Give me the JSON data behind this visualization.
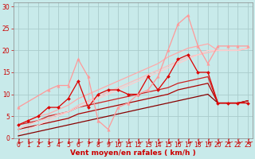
{
  "bg_color": "#c8eaea",
  "grid_color": "#aacccc",
  "xlabel": "Vent moyen/en rafales ( km/h )",
  "xlim": [
    -0.5,
    23.5
  ],
  "ylim": [
    0,
    31
  ],
  "yticks": [
    0,
    5,
    10,
    15,
    20,
    25,
    30
  ],
  "xticks": [
    0,
    1,
    2,
    3,
    4,
    5,
    6,
    7,
    8,
    9,
    10,
    11,
    12,
    13,
    14,
    15,
    16,
    17,
    18,
    19,
    20,
    21,
    22,
    23
  ],
  "lines": [
    {
      "x": [
        0,
        1,
        2,
        3,
        4,
        5,
        6,
        7,
        8,
        9,
        10,
        11,
        12,
        13,
        14,
        15,
        16,
        17,
        18,
        19,
        20,
        21,
        22,
        23
      ],
      "y": [
        3,
        4,
        5,
        7,
        7,
        9,
        13,
        7,
        10,
        11,
        11,
        10,
        10,
        14,
        11,
        14,
        18,
        19,
        15,
        15,
        8,
        8,
        8,
        8
      ],
      "color": "#dd0000",
      "lw": 0.9,
      "marker": "D",
      "ms": 2.0
    },
    {
      "x": [
        0,
        1,
        2,
        3,
        4,
        5,
        6,
        7,
        8,
        9,
        10,
        11,
        12,
        13,
        14,
        15,
        16,
        17,
        18,
        19,
        20,
        21,
        22,
        23
      ],
      "y": [
        0.5,
        1.0,
        1.5,
        2.0,
        2.5,
        3.0,
        3.5,
        4.0,
        4.5,
        5.0,
        5.5,
        6.0,
        6.5,
        7.0,
        7.5,
        8.0,
        8.5,
        9.0,
        9.5,
        10.0,
        8.0,
        8.0,
        8.0,
        8.5
      ],
      "color": "#880000",
      "lw": 0.9,
      "marker": null,
      "ms": 0
    },
    {
      "x": [
        0,
        1,
        2,
        3,
        4,
        5,
        6,
        7,
        8,
        9,
        10,
        11,
        12,
        13,
        14,
        15,
        16,
        17,
        18,
        19,
        20,
        21,
        22,
        23
      ],
      "y": [
        2,
        2.5,
        3.0,
        3.5,
        4.0,
        4.5,
        5.5,
        6.0,
        6.5,
        7.0,
        7.5,
        8.0,
        8.5,
        9.0,
        9.5,
        10.0,
        11.0,
        11.5,
        12.0,
        12.5,
        8.0,
        8.0,
        8.0,
        8.5
      ],
      "color": "#aa0000",
      "lw": 0.9,
      "marker": null,
      "ms": 0
    },
    {
      "x": [
        0,
        1,
        2,
        3,
        4,
        5,
        6,
        7,
        8,
        9,
        10,
        11,
        12,
        13,
        14,
        15,
        16,
        17,
        18,
        19,
        20,
        21,
        22,
        23
      ],
      "y": [
        3,
        3.5,
        4.0,
        5.0,
        5.5,
        6.0,
        7.0,
        7.5,
        8.0,
        8.5,
        9.0,
        9.5,
        10.0,
        10.5,
        11.0,
        11.5,
        12.5,
        13.0,
        13.5,
        14.0,
        8.0,
        8.0,
        8.0,
        8.5
      ],
      "color": "#cc2222",
      "lw": 0.9,
      "marker": null,
      "ms": 0
    },
    {
      "x": [
        0,
        3,
        4,
        5,
        6,
        7,
        8,
        9,
        10,
        11,
        12,
        13,
        14,
        15,
        16,
        17,
        18,
        19,
        20,
        21,
        22,
        23
      ],
      "y": [
        7,
        11,
        12,
        12,
        18,
        14,
        4,
        2,
        7,
        8,
        10,
        11,
        14,
        20,
        26,
        28,
        21,
        17,
        21,
        21,
        21,
        21
      ],
      "color": "#ff9999",
      "lw": 0.9,
      "marker": "^",
      "ms": 2.5
    },
    {
      "x": [
        0,
        1,
        2,
        3,
        4,
        5,
        6,
        7,
        8,
        9,
        10,
        11,
        12,
        13,
        14,
        15,
        16,
        17,
        18,
        19,
        20,
        21,
        22,
        23
      ],
      "y": [
        3,
        4,
        5,
        5.5,
        6.5,
        7.5,
        9,
        10,
        11,
        12,
        13,
        14,
        15,
        16,
        17,
        18.5,
        19.5,
        20.5,
        21,
        21.5,
        20,
        20,
        20,
        20.5
      ],
      "color": "#ffaaaa",
      "lw": 0.9,
      "marker": null,
      "ms": 0
    },
    {
      "x": [
        0,
        1,
        2,
        3,
        4,
        5,
        6,
        7,
        8,
        9,
        10,
        11,
        12,
        13,
        14,
        15,
        16,
        17,
        18,
        19,
        20,
        21,
        22,
        23
      ],
      "y": [
        2,
        3,
        4,
        4.5,
        5.5,
        6.0,
        7.5,
        8.5,
        9.5,
        10.5,
        11.5,
        12.5,
        13.5,
        14.5,
        15.5,
        16.5,
        17.5,
        18.5,
        19,
        19.5,
        20,
        20,
        20,
        20.5
      ],
      "color": "#ffbbbb",
      "lw": 0.9,
      "marker": null,
      "ms": 0
    },
    {
      "x": [
        0,
        1,
        2,
        3,
        4,
        5,
        6,
        7,
        8,
        9,
        10,
        11,
        12,
        13,
        14,
        15,
        16,
        17,
        18,
        19,
        20,
        21,
        22,
        23
      ],
      "y": [
        1,
        2,
        3,
        4,
        5,
        6,
        7,
        8,
        9,
        10,
        11,
        12,
        13,
        14,
        15,
        16,
        17,
        18,
        19,
        20,
        20,
        20,
        20,
        20.5
      ],
      "color": "#ffcccc",
      "lw": 0.9,
      "marker": null,
      "ms": 0
    }
  ],
  "tick_fontsize": 5.5,
  "xlabel_fontsize": 6.5
}
